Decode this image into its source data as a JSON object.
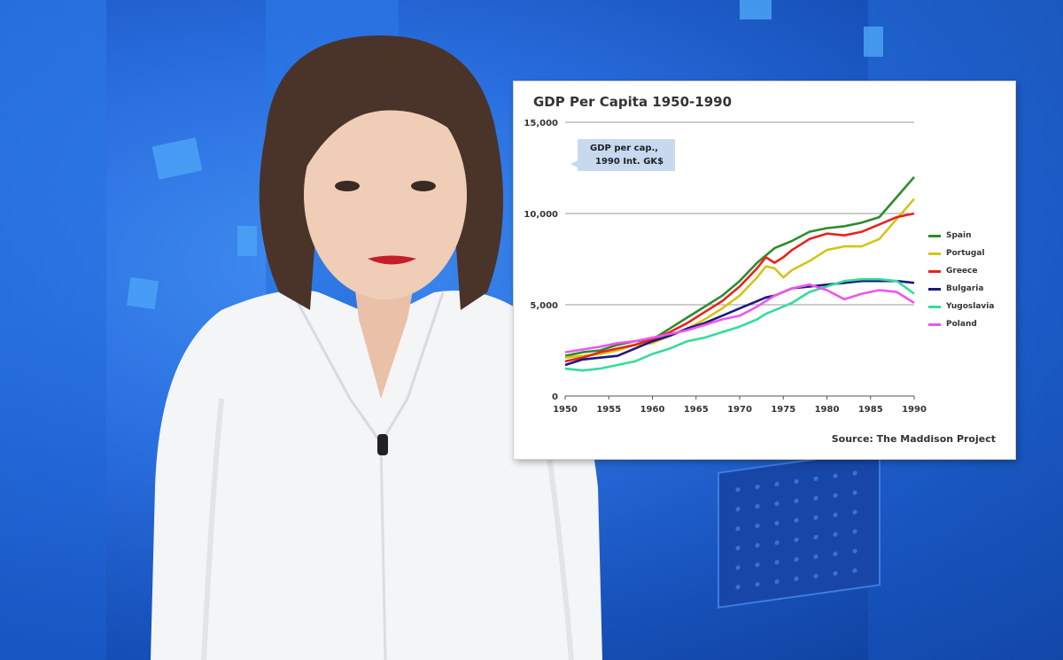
{
  "chart_data": {
    "type": "line",
    "title": "GDP Per Capita 1950-1990",
    "unit_label": [
      "GDP per cap.,",
      "1990 Int. GK$"
    ],
    "source": "Source: The Maddison Project",
    "xlim": [
      1950,
      1990
    ],
    "ylim": [
      0,
      15000
    ],
    "x_ticks": [
      "1950",
      "1955",
      "1960",
      "1965",
      "1970",
      "1975",
      "1980",
      "1985",
      "1990"
    ],
    "y_ticks": [
      "0",
      "5,000",
      "10,000",
      "15,000"
    ],
    "grid": "horizontal",
    "legend_position": "right",
    "x": [
      1950,
      1952,
      1954,
      1956,
      1958,
      1960,
      1962,
      1964,
      1966,
      1968,
      1970,
      1972,
      1973,
      1974,
      1975,
      1976,
      1978,
      1980,
      1982,
      1984,
      1986,
      1988,
      1990
    ],
    "series": [
      {
        "name": "Spain",
        "color": "#2e8b2e",
        "values": [
          2200,
          2400,
          2500,
          2800,
          3000,
          3100,
          3700,
          4300,
          4900,
          5500,
          6300,
          7300,
          7700,
          8100,
          8300,
          8500,
          9000,
          9200,
          9300,
          9500,
          9800,
          10900,
          12000
        ]
      },
      {
        "name": "Portugal",
        "color": "#d4c417",
        "values": [
          2100,
          2200,
          2300,
          2500,
          2800,
          2900,
          3300,
          3700,
          4200,
          4800,
          5500,
          6500,
          7100,
          7000,
          6500,
          6900,
          7400,
          8000,
          8200,
          8200,
          8600,
          9700,
          10800
        ]
      },
      {
        "name": "Greece",
        "color": "#e8231d",
        "values": [
          1900,
          2100,
          2400,
          2600,
          2800,
          3100,
          3500,
          4000,
          4600,
          5200,
          6000,
          7000,
          7600,
          7300,
          7600,
          8000,
          8600,
          8900,
          8800,
          9000,
          9400,
          9800,
          10000
        ]
      },
      {
        "name": "Bulgaria",
        "color": "#1a1a80",
        "values": [
          1700,
          2000,
          2100,
          2200,
          2600,
          3000,
          3300,
          3700,
          4000,
          4400,
          4800,
          5200,
          5400,
          5500,
          5700,
          5900,
          6000,
          6100,
          6200,
          6300,
          6300,
          6300,
          6200
        ]
      },
      {
        "name": "Yugoslavia",
        "color": "#33dd99",
        "values": [
          1500,
          1400,
          1500,
          1700,
          1900,
          2300,
          2600,
          3000,
          3200,
          3500,
          3800,
          4200,
          4500,
          4700,
          4900,
          5100,
          5700,
          6000,
          6300,
          6400,
          6400,
          6300,
          5600
        ]
      },
      {
        "name": "Poland",
        "color": "#ee55ee",
        "values": [
          2400,
          2550,
          2700,
          2900,
          3000,
          3200,
          3400,
          3600,
          3900,
          4200,
          4400,
          4900,
          5200,
          5500,
          5700,
          5900,
          6100,
          5800,
          5300,
          5600,
          5800,
          5700,
          5100
        ]
      }
    ]
  }
}
